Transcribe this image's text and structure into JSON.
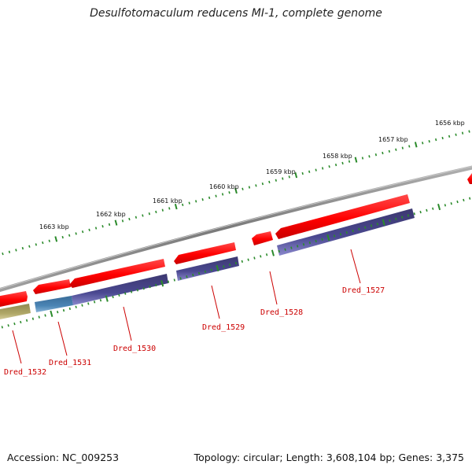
{
  "title": "Desulfotomaculum reducens MI-1, complete genome",
  "accession": "Accession: NC_009253",
  "topology": "Topology: circular; Length: 3,608,104 bp; Genes: 3,375",
  "colors": {
    "backbone": "#8a8a8a",
    "gene": "#ff0000",
    "cds": "#4a4890",
    "cds_alt": "#4a84b4",
    "cds_other": "#b8b070",
    "ticks": "#2a8a2a",
    "label": "#cc0000"
  },
  "kbp_labels": [
    "1656 kbp",
    "1657 kbp",
    "1658 kbp",
    "1659 kbp",
    "1660 kbp",
    "1661 kbp",
    "1662 kbp",
    "1663 kbp"
  ],
  "genes": [
    {
      "label": "Dred_1527"
    },
    {
      "label": "Dred_1528"
    },
    {
      "label": "Dred_1529"
    },
    {
      "label": "Dred_1530"
    },
    {
      "label": "Dred_1531"
    },
    {
      "label": "Dred_1532"
    }
  ]
}
